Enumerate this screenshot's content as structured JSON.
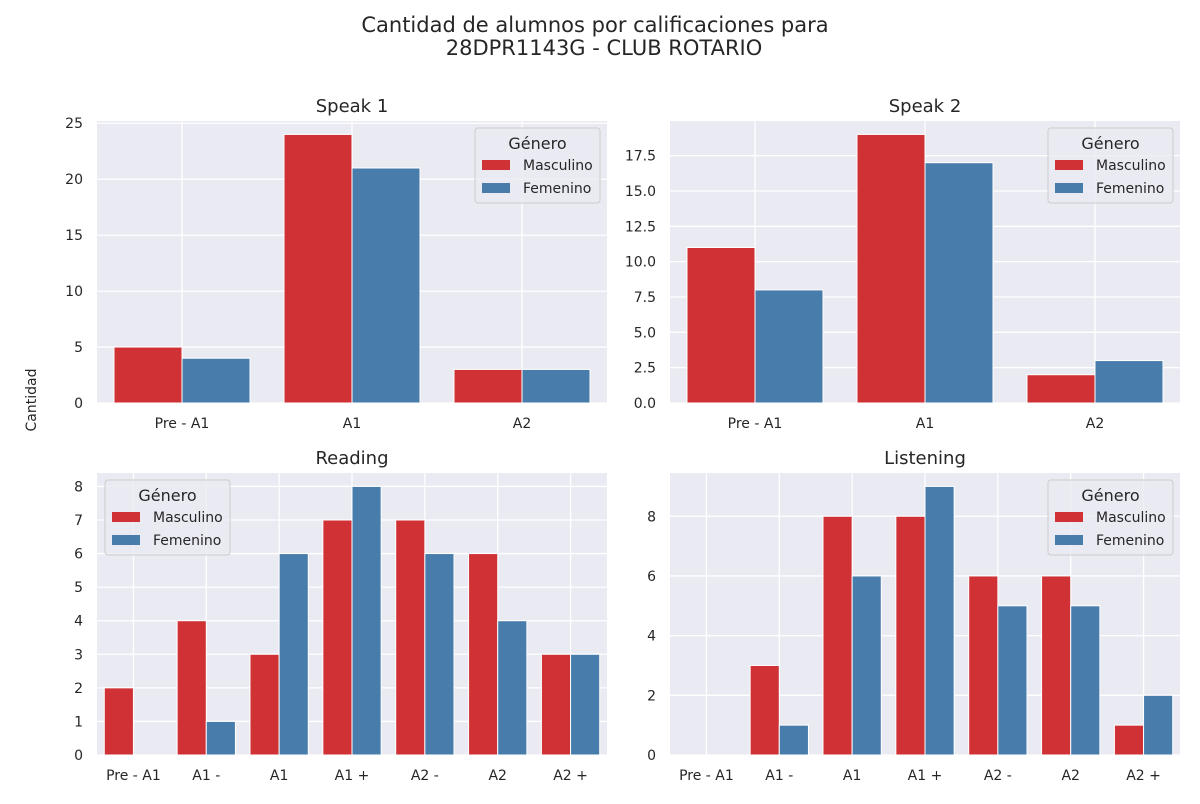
{
  "figure": {
    "title_line1": "Cantidad de alumnos por calificaciones para",
    "title_line2": "28DPR1143G - CLUB ROTARIO",
    "ylabel": "Cantidad"
  },
  "colors": {
    "Masculino": "#cf3134",
    "Femenino": "#477cab",
    "plot_bg": "#eaeaf2",
    "grid": "#ffffff"
  },
  "chart_data": [
    {
      "type": "bar",
      "title": "Speak 1",
      "categories": [
        "Pre - A1",
        "A1",
        "A2"
      ],
      "series": [
        {
          "name": "Masculino",
          "values": [
            5,
            24,
            3
          ]
        },
        {
          "name": "Femenino",
          "values": [
            4,
            21,
            3
          ]
        }
      ],
      "ylim": [
        0,
        25.2
      ],
      "yticks": [
        0,
        5,
        10,
        15,
        20,
        25
      ],
      "ytick_labels": [
        "0",
        "5",
        "10",
        "15",
        "20",
        "25"
      ],
      "legend": {
        "title": "Género",
        "placement": "upper-right"
      },
      "grid": true
    },
    {
      "type": "bar",
      "title": "Speak 2",
      "categories": [
        "Pre - A1",
        "A1",
        "A2"
      ],
      "series": [
        {
          "name": "Masculino",
          "values": [
            11,
            19,
            2
          ]
        },
        {
          "name": "Femenino",
          "values": [
            8,
            17,
            3
          ]
        }
      ],
      "ylim": [
        0,
        19.95
      ],
      "yticks": [
        0,
        2.5,
        5,
        7.5,
        10,
        12.5,
        15,
        17.5
      ],
      "ytick_labels": [
        "0.0",
        "2.5",
        "5.0",
        "7.5",
        "10.0",
        "12.5",
        "15.0",
        "17.5"
      ],
      "legend": {
        "title": "Género",
        "placement": "upper-right"
      },
      "grid": true
    },
    {
      "type": "bar",
      "title": "Reading",
      "categories": [
        "Pre - A1",
        "A1 -",
        "A1",
        "A1 +",
        "A2 -",
        "A2",
        "A2 +"
      ],
      "series": [
        {
          "name": "Masculino",
          "values": [
            2,
            4,
            3,
            7,
            7,
            6,
            3
          ]
        },
        {
          "name": "Femenino",
          "values": [
            0,
            1,
            6,
            8,
            6,
            4,
            3
          ]
        }
      ],
      "ylim": [
        0,
        8.4
      ],
      "yticks": [
        0,
        1,
        2,
        3,
        4,
        5,
        6,
        7,
        8
      ],
      "ytick_labels": [
        "0",
        "1",
        "2",
        "3",
        "4",
        "5",
        "6",
        "7",
        "8"
      ],
      "legend": {
        "title": "Género",
        "placement": "upper-left"
      },
      "grid": true
    },
    {
      "type": "bar",
      "title": "Listening",
      "categories": [
        "Pre - A1",
        "A1 -",
        "A1",
        "A1 +",
        "A2 -",
        "A2",
        "A2 +"
      ],
      "series": [
        {
          "name": "Masculino",
          "values": [
            0,
            3,
            8,
            8,
            6,
            6,
            1
          ]
        },
        {
          "name": "Femenino",
          "values": [
            0,
            1,
            6,
            9,
            5,
            5,
            2
          ]
        }
      ],
      "ylim": [
        0,
        9.45
      ],
      "yticks": [
        0,
        2,
        4,
        6,
        8
      ],
      "ytick_labels": [
        "0",
        "2",
        "4",
        "6",
        "8"
      ],
      "legend": {
        "title": "Género",
        "placement": "upper-right"
      },
      "grid": true
    }
  ]
}
